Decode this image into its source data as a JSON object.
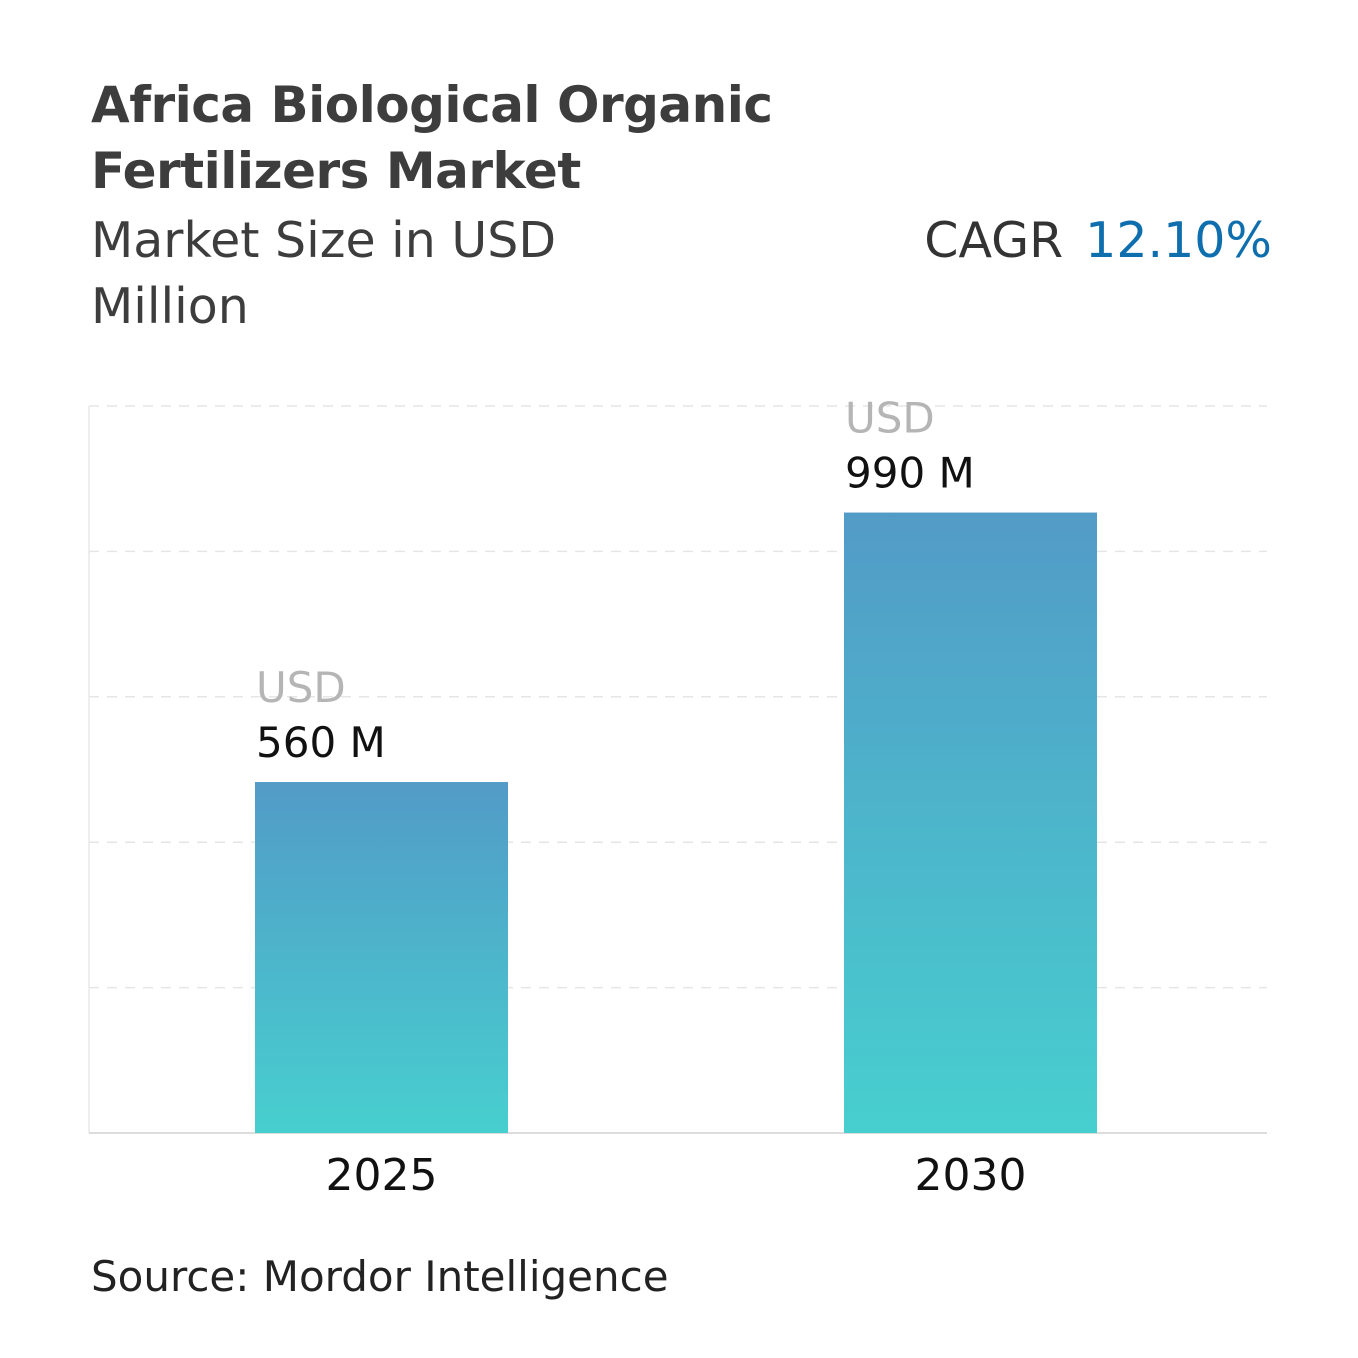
{
  "title": "Africa Biological Organic Fertilizers Market",
  "subtitle": "Market Size in USD Million",
  "cagr": {
    "label": "CAGR",
    "value": "12.10%"
  },
  "source": "Source: Mordor Intelligence",
  "colors": {
    "title": "#3d3d3d",
    "cagr_value": "#0f6fae",
    "bar_top": "#529bc7",
    "bar_bottom": "#47cfcf",
    "value_prefix": "#b5b5b5",
    "gridline": "#e6e6e6"
  },
  "chart_data": {
    "type": "bar",
    "categories": [
      "2025",
      "2030"
    ],
    "values": [
      560,
      990
    ],
    "value_prefix": [
      "USD",
      "USD"
    ],
    "value_labels": [
      "560 M",
      "990 M"
    ],
    "xlabel": "",
    "ylabel": "",
    "ylim": [
      0,
      1160
    ],
    "grid": true,
    "legend": "none"
  }
}
